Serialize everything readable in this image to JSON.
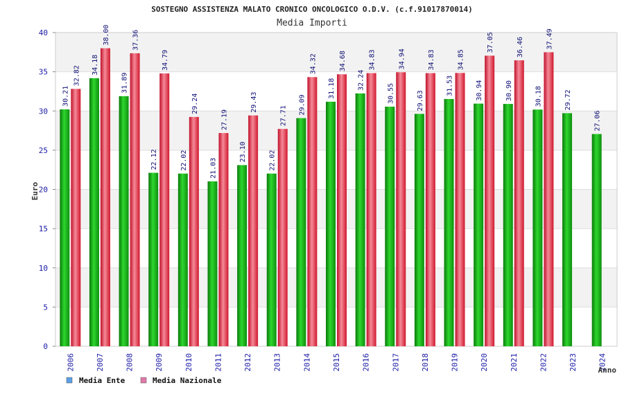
{
  "chart_data": {
    "type": "bar",
    "title": "SOSTEGNO ASSISTENZA MALATO CRONICO ONCOLOGICO O.D.V. (c.f.91017870014)",
    "subtitle": "Media Importi",
    "xlabel": "Anno",
    "ylabel": "Euro",
    "ylim": [
      0,
      40
    ],
    "yticks": [
      "0",
      "5",
      "10",
      "15",
      "20",
      "25",
      "30",
      "35",
      "40"
    ],
    "grid": true,
    "legend_position": "bottom-left",
    "categories": [
      "2006",
      "2007",
      "2008",
      "2009",
      "2010",
      "2011",
      "2012",
      "2013",
      "2014",
      "2015",
      "2016",
      "2017",
      "2018",
      "2019",
      "2020",
      "2021",
      "2022",
      "2023",
      "2024"
    ],
    "series": [
      {
        "name": "Media Ente",
        "color": "#16b016",
        "legend_color": "#5aa0e6",
        "values": [
          30.21,
          34.18,
          31.89,
          22.12,
          22.02,
          21.03,
          23.1,
          22.02,
          29.09,
          31.18,
          32.24,
          30.55,
          29.63,
          31.53,
          30.94,
          30.9,
          30.18,
          29.72,
          27.06
        ],
        "labels": [
          "30.21",
          "34.18",
          "31.89",
          "22.12",
          "22.02",
          "21.03",
          "23.10",
          "22.02",
          "29.09",
          "31.18",
          "32.24",
          "30.55",
          "29.63",
          "31.53",
          "30.94",
          "30.90",
          "30.18",
          "29.72",
          "27.06"
        ]
      },
      {
        "name": "Media Nazionale",
        "color": "#e3233a",
        "legend_color": "#e07aa8",
        "values": [
          32.82,
          38.0,
          37.36,
          34.79,
          29.24,
          27.19,
          29.43,
          27.71,
          34.32,
          34.68,
          34.83,
          34.94,
          34.83,
          34.85,
          37.05,
          36.46,
          37.49,
          null,
          null
        ],
        "labels": [
          "32.82",
          "38.00",
          "37.36",
          "34.79",
          "29.24",
          "27.19",
          "29.43",
          "27.71",
          "34.32",
          "34.68",
          "34.83",
          "34.94",
          "34.83",
          "34.85",
          "37.05",
          "36.46",
          "37.49",
          "",
          ""
        ]
      }
    ]
  }
}
